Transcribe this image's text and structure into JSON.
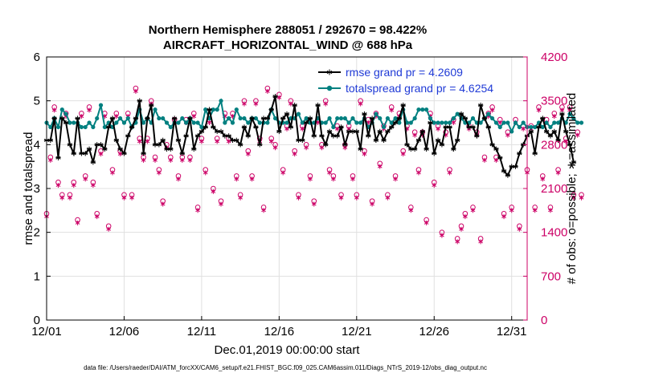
{
  "chart_data": {
    "type": "line",
    "title_line1": "Northern Hemisphere 288051 / 292670 = 98.422%",
    "title_line2": "AIRCRAFT_HORIZONTAL_WIND @ 688 hPa",
    "xlabel": "Dec.01,2019 00:00:00 start",
    "ylabel_left": "rmse and totalspread",
    "ylabel_right": "# of obs: o=possible; ∗=assimilated",
    "footer": "data file: /Users/raeder/DAI/ATM_forcXX/CAM6_setup/f.e21.FHIST_BGC.f09_025.CAM6assim.011/Diags_NTrS_2019-12/obs_diag_output.nc",
    "xlim": [
      1,
      32
    ],
    "ylim_left": [
      0,
      6
    ],
    "ylim_right": [
      0,
      4200
    ],
    "x_ticks": [
      1,
      6,
      11,
      16,
      21,
      26,
      31
    ],
    "x_tick_labels": [
      "12/01",
      "12/06",
      "12/11",
      "12/16",
      "12/21",
      "12/26",
      "12/31"
    ],
    "y_left_ticks": [
      0,
      1,
      2,
      3,
      4,
      5,
      6
    ],
    "y_left_tick_labels": [
      "0",
      "1",
      "2",
      "3",
      "4",
      "5",
      "6"
    ],
    "y_right_ticks": [
      0,
      700,
      1400,
      2100,
      2800,
      3500,
      4200
    ],
    "y_right_tick_labels": [
      "0",
      "700",
      "1400",
      "2100",
      "2800",
      "3500",
      "4200"
    ],
    "colors": {
      "rmse": "#000000",
      "spread": "#008080",
      "obs": "#cc0066",
      "legend_text": "#1f3ad6",
      "grid": "#e0e0e0"
    },
    "series": [
      {
        "name": "rmse",
        "legend_label": "rmse grand pr = 4.2609",
        "x_start": 1.0,
        "x_step": 0.25,
        "values": [
          4.1,
          4.1,
          4.6,
          3.7,
          4.6,
          4.5,
          4.0,
          3.8,
          4.6,
          3.8,
          3.8,
          3.9,
          3.6,
          4.0,
          4.0,
          3.9,
          4.4,
          4.6,
          4.1,
          3.9,
          3.8,
          4.2,
          4.4,
          4.6,
          5.0,
          3.8,
          4.6,
          4.9,
          4.0,
          4.0,
          4.1,
          3.9,
          3.9,
          4.6,
          4.1,
          3.8,
          4.2,
          4.6,
          3.9,
          4.2,
          4.3,
          4.4,
          4.8,
          4.4,
          4.3,
          4.3,
          4.2,
          4.2,
          4.1,
          4.1,
          4.0,
          4.4,
          4.2,
          4.6,
          4.4,
          4.0,
          4.6,
          4.6,
          4.8,
          5.1,
          4.3,
          4.6,
          4.7,
          4.4,
          4.9,
          4.1,
          4.1,
          4.5,
          4.6,
          4.2,
          4.9,
          4.2,
          4.0,
          4.3,
          4.2,
          4.2,
          4.4,
          4.0,
          4.3,
          4.3,
          4.3,
          3.9,
          4.7,
          4.2,
          4.6,
          4.1,
          4.3,
          4.1,
          4.3,
          4.4,
          4.5,
          4.6,
          4.9,
          4.0,
          3.9,
          3.9,
          4.1,
          4.3,
          3.9,
          4.5,
          3.8,
          4.1,
          4.0,
          4.4,
          4.4,
          3.9,
          4.1,
          4.7,
          4.6,
          4.4,
          4.4,
          4.2,
          4.9,
          4.6,
          4.4,
          4.0,
          3.9,
          3.7,
          3.4,
          3.3,
          3.5,
          3.5,
          3.8,
          4.0,
          4.2,
          4.3,
          3.8,
          4.4,
          4.6,
          4.3,
          4.2,
          4.3,
          4.1,
          4.7,
          4.3,
          4.0,
          3.6
        ]
      },
      {
        "name": "totalspread",
        "legend_label": "totalspread grand pr = 4.6254",
        "x_start": 1.0,
        "x_step": 0.25,
        "values": [
          4.5,
          4.4,
          4.6,
          4.4,
          4.8,
          4.7,
          4.5,
          4.5,
          4.5,
          4.4,
          4.4,
          4.5,
          4.4,
          4.6,
          4.9,
          4.4,
          4.5,
          4.4,
          4.5,
          4.6,
          4.5,
          4.6,
          4.4,
          4.5,
          4.8,
          4.5,
          4.6,
          4.5,
          4.8,
          4.6,
          4.6,
          4.5,
          4.4,
          4.5,
          4.5,
          4.6,
          4.5,
          4.6,
          4.5,
          4.5,
          4.4,
          4.8,
          4.6,
          4.8,
          4.8,
          5.0,
          4.5,
          4.6,
          4.5,
          4.8,
          4.6,
          4.6,
          4.5,
          4.6,
          4.6,
          4.5,
          4.5,
          4.5,
          4.8,
          4.6,
          4.5,
          4.5,
          4.5,
          4.6,
          4.6,
          4.7,
          4.5,
          4.6,
          4.5,
          4.5,
          4.6,
          4.5,
          4.5,
          4.6,
          4.4,
          4.6,
          4.6,
          4.6,
          4.5,
          4.6,
          4.5,
          4.5,
          4.6,
          4.4,
          4.5,
          4.7,
          4.6,
          4.4,
          4.6,
          4.5,
          4.6,
          4.5,
          4.8,
          4.5,
          4.5,
          4.6,
          4.8,
          4.8,
          4.8,
          4.6,
          4.5,
          4.5,
          4.5,
          4.5,
          4.5,
          4.6,
          4.7,
          4.6,
          4.5,
          4.5,
          4.6,
          4.5,
          4.5,
          4.6,
          4.7,
          4.6,
          4.5,
          4.4,
          4.5,
          4.5,
          4.3,
          4.5,
          4.4,
          4.5,
          4.4,
          4.4,
          4.4,
          4.5,
          4.4,
          4.5,
          4.4,
          4.5,
          4.5,
          4.6,
          4.5,
          4.7,
          4.6,
          4.5,
          4.5
        ]
      },
      {
        "name": "obs_possible",
        "axis": "right",
        "x_start": 1.0,
        "x_step": 0.25,
        "values": [
          1700,
          2600,
          3400,
          2200,
          2000,
          3300,
          2000,
          2200,
          1600,
          3300,
          2300,
          3400,
          2200,
          1700,
          2700,
          3300,
          1500,
          2400,
          3300,
          2700,
          2000,
          3300,
          2000,
          3700,
          2900,
          2600,
          2900,
          3500,
          2600,
          2400,
          1900,
          2800,
          2600,
          3200,
          2300,
          2600,
          3200,
          2600,
          3300,
          1800,
          2900,
          2400,
          3200,
          2100,
          2900,
          1900,
          3300,
          2900,
          3300,
          2300,
          2000,
          3500,
          2700,
          2300,
          3500,
          2900,
          1800,
          3700,
          2900,
          2800,
          3600,
          2400,
          3100,
          3500,
          2700,
          2000,
          3100,
          2800,
          2300,
          1900,
          3200,
          2800,
          3500,
          2400,
          2300,
          3100,
          2000,
          2800,
          3100,
          2300,
          2000,
          3500,
          2700,
          3200,
          1900,
          3300,
          2500,
          3100,
          2000,
          3400,
          2300,
          3300,
          2700,
          3100,
          1800,
          3000,
          2400,
          3000,
          1600,
          3300,
          2200,
          3100,
          1400,
          3000,
          2400,
          3200,
          1300,
          1500,
          1700,
          3100,
          1800,
          3000,
          1300,
          2600,
          3300,
          3400,
          2600,
          3200,
          1700,
          3000,
          1800,
          3200,
          1500,
          3100,
          2400,
          3100,
          1800,
          3400,
          2300,
          3200,
          1800,
          3300,
          2400,
          3400,
          2900,
          3400,
          2000,
          3000,
          2000
        ]
      },
      {
        "name": "obs_assimilated",
        "axis": "right",
        "x_start": 1.0,
        "x_step": 0.25,
        "values": [
          1650,
          2550,
          3350,
          2150,
          1950,
          3250,
          1950,
          2150,
          1550,
          3250,
          2250,
          3350,
          2150,
          1650,
          2650,
          3250,
          1450,
          2350,
          3250,
          2650,
          1950,
          3250,
          1950,
          3650,
          2850,
          2550,
          2850,
          3450,
          2550,
          2350,
          1850,
          2750,
          2550,
          3150,
          2250,
          2550,
          3150,
          2550,
          3250,
          1750,
          2850,
          2350,
          3150,
          2050,
          2850,
          1850,
          3250,
          2850,
          3250,
          2250,
          1950,
          3450,
          2650,
          2250,
          3450,
          2850,
          1750,
          3650,
          2850,
          2750,
          3550,
          2350,
          3050,
          3450,
          2650,
          1950,
          3050,
          2750,
          2250,
          1850,
          3150,
          2750,
          3450,
          2350,
          2250,
          3050,
          1950,
          2750,
          3050,
          2250,
          1950,
          3450,
          2650,
          3150,
          1850,
          3250,
          2450,
          3050,
          1950,
          3350,
          2250,
          3250,
          2650,
          3050,
          1750,
          2950,
          2350,
          2950,
          1550,
          3250,
          2150,
          3050,
          1350,
          2950,
          2350,
          3150,
          1250,
          1450,
          1650,
          3050,
          1750,
          2950,
          1250,
          2550,
          3250,
          3350,
          2550,
          3150,
          1650,
          2950,
          1750,
          3150,
          1450,
          3050,
          2350,
          3050,
          1750,
          3350,
          2250,
          3150,
          1750,
          3250,
          2350,
          3350,
          2850,
          3350,
          1950,
          2950,
          1950
        ]
      }
    ]
  }
}
